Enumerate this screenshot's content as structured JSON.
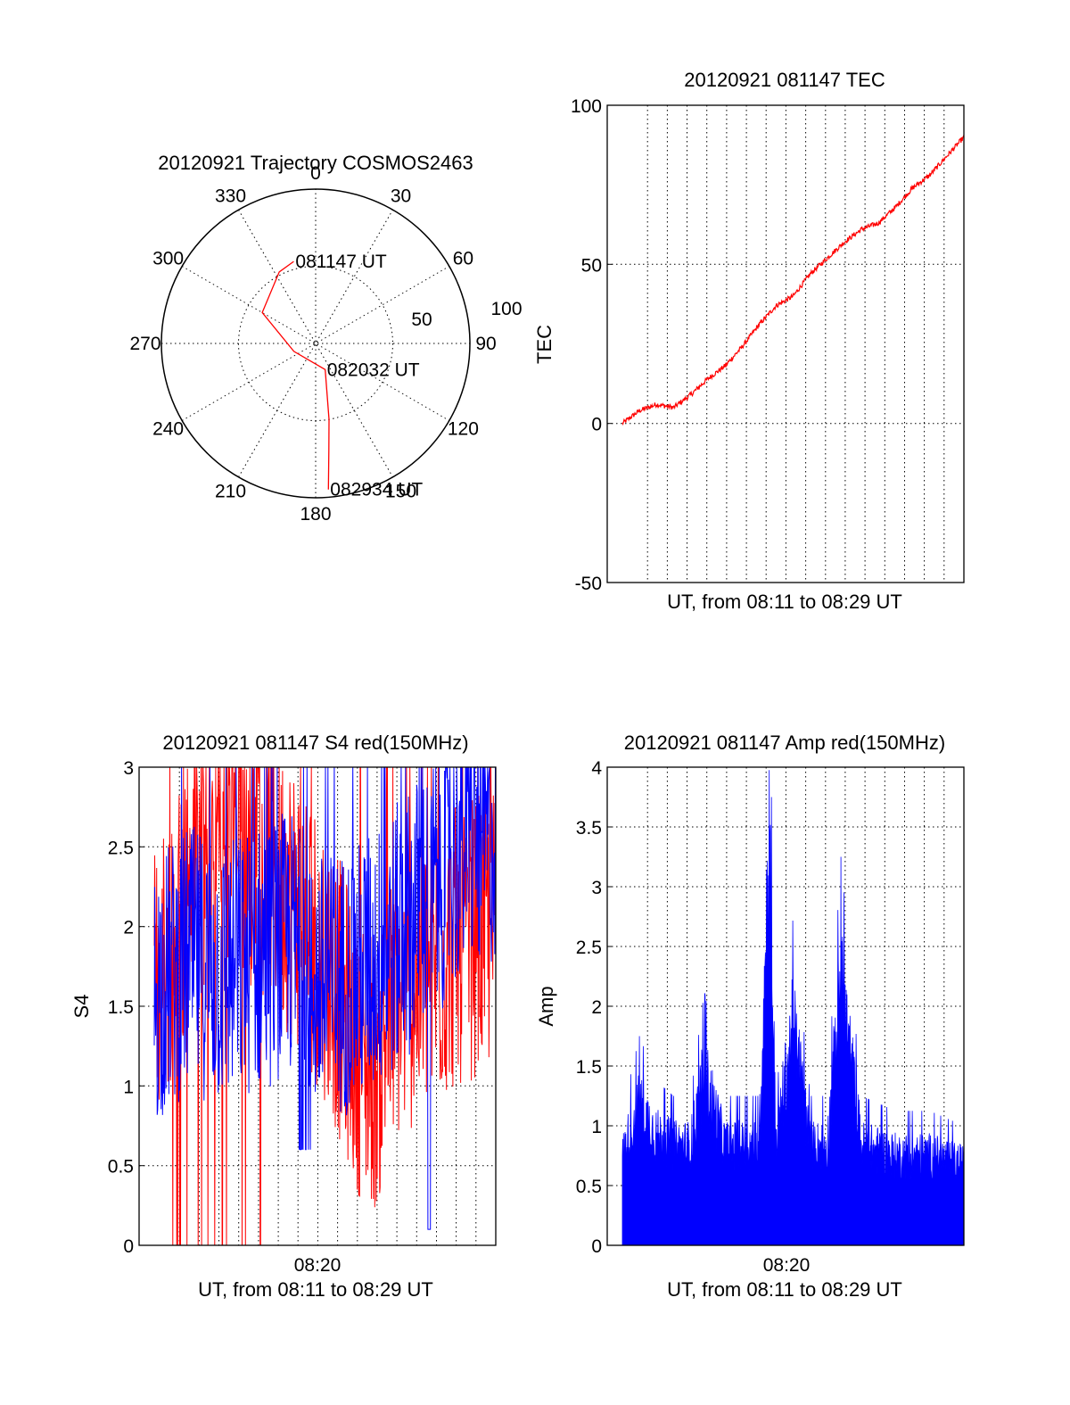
{
  "chart_data": [
    {
      "type": "polar",
      "title": "20120921 Trajectory COSMOS2463",
      "angle_labels": [
        "0",
        "30",
        "60",
        "90",
        "120",
        "150",
        "180",
        "210",
        "240",
        "270",
        "300",
        "330"
      ],
      "radius_labels": [
        "50",
        "100"
      ],
      "rlim": [
        0,
        100
      ],
      "grid": true,
      "series": [
        {
          "color": "#ff0000",
          "points": [
            {
              "azimuth": 345,
              "elevation": 45,
              "label": "081147 UT"
            },
            {
              "azimuth": 333,
              "elevation": 48
            },
            {
              "azimuth": 300,
              "elevation": 60
            },
            {
              "azimuth": 250,
              "elevation": 85
            },
            {
              "azimuth": 160,
              "elevation": 82,
              "label": "082032 UT"
            },
            {
              "azimuth": 170,
              "elevation": 50
            },
            {
              "azimuth": 173,
              "elevation": 30
            },
            {
              "azimuth": 175,
              "elevation": 5,
              "label": "082934 UT"
            }
          ]
        }
      ]
    },
    {
      "type": "line",
      "title": "20120921 081147 TEC",
      "xlabel": "UT, from 08:11 to 08:29 UT",
      "ylabel": "TEC",
      "ylim": [
        -50,
        100
      ],
      "yticks": [
        "100",
        "50",
        "0",
        "-50"
      ],
      "grid": true,
      "series": [
        {
          "color": "#ff0000",
          "x": [
            0,
            0.05,
            0.1,
            0.15,
            0.2,
            0.25,
            0.3,
            0.35,
            0.4,
            0.45,
            0.5,
            0.55,
            0.6,
            0.65,
            0.7,
            0.75,
            0.8,
            0.85,
            0.9,
            0.95,
            1.0
          ],
          "values": [
            0,
            4,
            6,
            5,
            9,
            14,
            18,
            24,
            31,
            37,
            40,
            47,
            52,
            57,
            61,
            63,
            68,
            74,
            78,
            84,
            90
          ]
        }
      ]
    },
    {
      "type": "line",
      "title": "20120921 081147 S4 red(150MHz)",
      "xlabel": "UT, from 08:11 to 08:29 UT",
      "ylabel": "S4",
      "xticks": [
        "08:20"
      ],
      "ylim": [
        0,
        3
      ],
      "yticks": [
        "3",
        "2.5",
        "2",
        "1.5",
        "1",
        "0.5",
        "0"
      ],
      "grid": true,
      "series": [
        {
          "color": "#ff0000",
          "x": [
            0,
            0.1,
            0.2,
            0.3,
            0.4,
            0.5,
            0.55,
            0.6,
            0.65,
            0.7,
            0.8,
            0.9,
            1.0
          ],
          "values": [
            1.6,
            2.3,
            2.6,
            2.5,
            2.2,
            1.8,
            1.5,
            1.2,
            1.1,
            1.5,
            1.7,
            1.9,
            2.0
          ]
        },
        {
          "color": "#0000ff",
          "x": [
            0,
            0.1,
            0.2,
            0.3,
            0.4,
            0.45,
            0.5,
            0.6,
            0.7,
            0.8,
            0.9,
            1.0
          ],
          "values": [
            1.6,
            1.8,
            1.7,
            1.8,
            1.9,
            1.7,
            1.6,
            1.7,
            1.9,
            2.2,
            2.5,
            2.6
          ]
        }
      ]
    },
    {
      "type": "line",
      "title": "20120921 081147 Amp red(150MHz)",
      "xlabel": "UT, from 08:11 to 08:29 UT",
      "ylabel": "Amp",
      "xticks": [
        "08:20"
      ],
      "ylim": [
        0,
        4
      ],
      "yticks": [
        "4",
        "3.5",
        "3",
        "2.5",
        "2",
        "1.5",
        "1",
        "0.5",
        "0"
      ],
      "grid": true,
      "series": [
        {
          "color": "#0000ff",
          "x": [
            0,
            0.05,
            0.1,
            0.15,
            0.2,
            0.24,
            0.3,
            0.35,
            0.4,
            0.43,
            0.45,
            0.5,
            0.55,
            0.6,
            0.64,
            0.7,
            0.8,
            0.9,
            1.0
          ],
          "values": [
            0.9,
            1.4,
            1.1,
            1.0,
            1.0,
            1.7,
            1.0,
            1.0,
            1.0,
            4.0,
            1.0,
            2.2,
            1.0,
            1.0,
            2.6,
            1.0,
            0.9,
            0.9,
            0.8
          ]
        }
      ]
    }
  ]
}
